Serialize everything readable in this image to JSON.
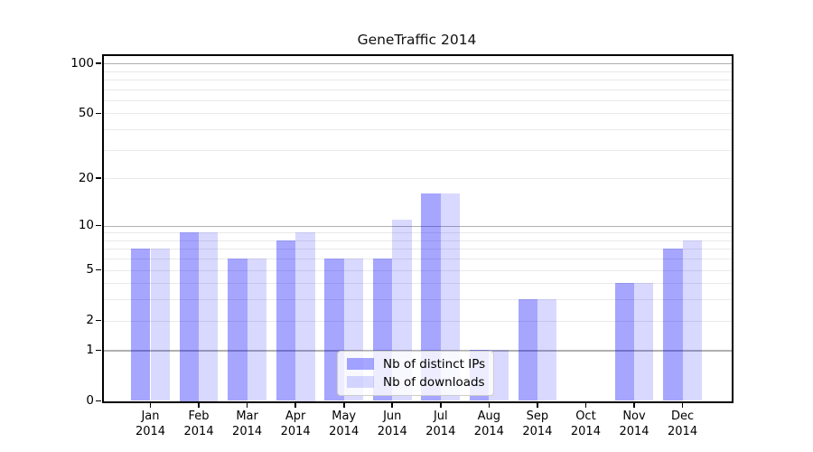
{
  "chart_data": {
    "type": "bar",
    "title": "GeneTraffic 2014",
    "year_label": "2014",
    "categories": [
      "Jan",
      "Feb",
      "Mar",
      "Apr",
      "May",
      "Jun",
      "Jul",
      "Aug",
      "Sep",
      "Oct",
      "Nov",
      "Dec"
    ],
    "series": [
      {
        "name": "Nb of distinct IPs",
        "color": "#0000FF59",
        "values": [
          7,
          9,
          6,
          8,
          6,
          6,
          16,
          1,
          3,
          0,
          4,
          7
        ]
      },
      {
        "name": "Nb of downloads",
        "color": "#0000FF26",
        "values": [
          7,
          9,
          6,
          9,
          6,
          11,
          16,
          1,
          3,
          0,
          4,
          8
        ]
      }
    ],
    "y_axis": {
      "scale": "log10(1+x)",
      "tick_values": [
        0,
        1,
        2,
        5,
        10,
        20,
        50,
        100
      ],
      "major_gridlines": [
        1,
        10,
        100
      ],
      "minor_gridlines": [
        2,
        3,
        4,
        5,
        6,
        7,
        8,
        9,
        20,
        30,
        40,
        50,
        60,
        70,
        80,
        90
      ],
      "ylim": [
        0,
        102
      ]
    },
    "legend": {
      "position": "lower center"
    },
    "colors": {
      "bar_dark_on_white": "#A6A6FF",
      "bar_light_on_white": "#D9D9FF",
      "major_grid": "#B0B0B0",
      "minor_grid": "#E9E9E9",
      "axis": "#000000",
      "legend_border": "#CCCCCC"
    }
  }
}
